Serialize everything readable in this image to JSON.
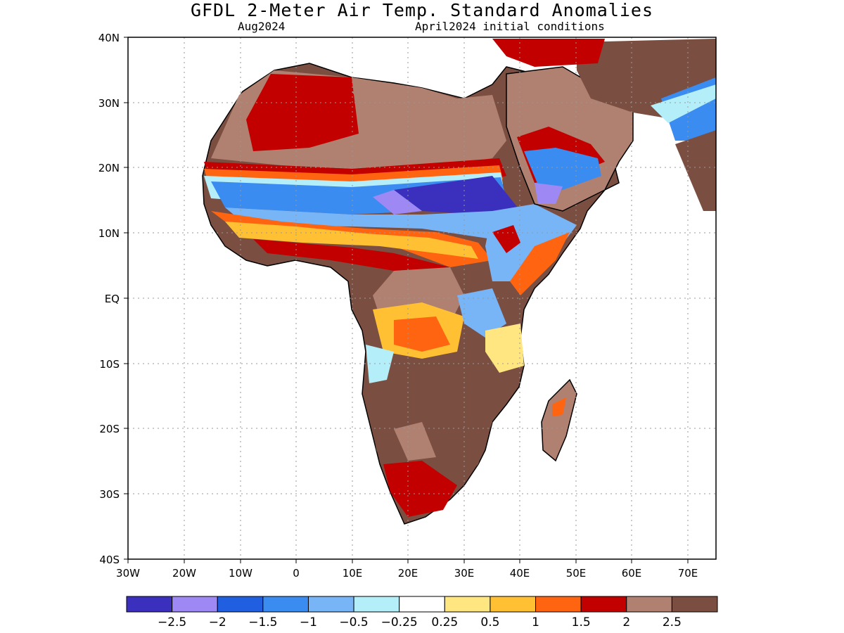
{
  "title": "GFDL 2-Meter Air Temp. Standard Anomalies",
  "subtitle_left": "Aug2024",
  "subtitle_right": "April2024 initial conditions",
  "lat_labels": [
    "40N",
    "30N",
    "20N",
    "10N",
    "EQ",
    "10S",
    "20S",
    "30S",
    "40S"
  ],
  "lon_labels": [
    "30W",
    "20W",
    "10W",
    "0",
    "10E",
    "20E",
    "30E",
    "40E",
    "50E",
    "60E",
    "70E"
  ],
  "colorbar": {
    "colors": [
      "#3b2fbd",
      "#9d88f4",
      "#1f5fe0",
      "#3a8cf0",
      "#78b5f7",
      "#b4eef9",
      "#ffffff",
      "#ffe680",
      "#ffc033",
      "#ff6410",
      "#c30000",
      "#b08070",
      "#7b4e42"
    ],
    "labels": [
      "-2.5",
      "-2",
      "-1.5",
      "-1",
      "-0.5",
      "-0.25",
      "0.25",
      "0.5",
      "1",
      "1.5",
      "2",
      "2.5"
    ]
  },
  "colors": {
    "land_outline": "#000000",
    "grid": "#999999"
  }
}
